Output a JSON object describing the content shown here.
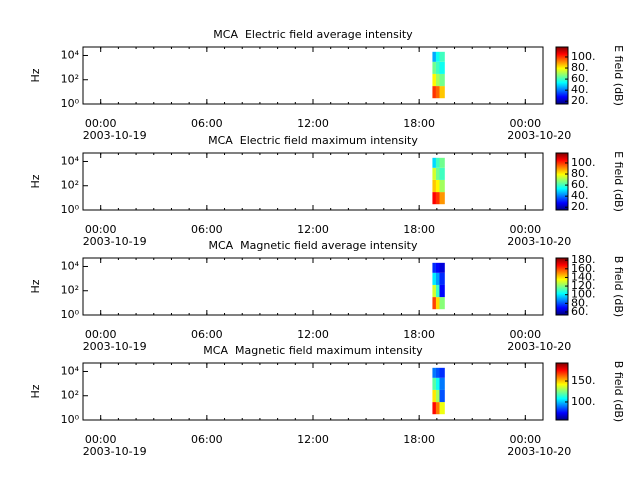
{
  "chart_data": [
    {
      "type": "spectrogram",
      "title": "MCA  Electric field average intensity",
      "ylabel": "Hz",
      "log_y": true,
      "ylim": [
        1,
        50000
      ],
      "yticks": [
        {
          "value": 1,
          "label": "10⁰"
        },
        {
          "value": 100,
          "label": "10²"
        },
        {
          "value": 10000,
          "label": "10⁴"
        }
      ],
      "xlim": [
        -1,
        25
      ],
      "xminor_step": 1,
      "xticks": [
        {
          "value": 0,
          "label": "00:00"
        },
        {
          "value": 6,
          "label": "06:00"
        },
        {
          "value": 12,
          "label": "12:00"
        },
        {
          "value": 18,
          "label": "18:00"
        },
        {
          "value": 24,
          "label": "00:00"
        }
      ],
      "xdates": [
        {
          "value": 0,
          "label": "2003-10-19"
        },
        {
          "value": 24,
          "label": "2003-10-20"
        }
      ],
      "time_edges": [
        18.75,
        18.95,
        19.15,
        19.45
      ],
      "freq_edges": [
        3,
        30,
        300,
        3000,
        20000
      ],
      "z": [
        [
          100,
          95,
          85
        ],
        [
          80,
          70,
          65
        ],
        [
          65,
          60,
          55
        ],
        [
          45,
          55,
          60
        ]
      ],
      "colorbar": {
        "label": "E field (dB)",
        "colormap": "jet",
        "clim": [
          15,
          118
        ],
        "ticks": [
          {
            "value": 20,
            "label": "20."
          },
          {
            "value": 40,
            "label": "40."
          },
          {
            "value": 60,
            "label": "60."
          },
          {
            "value": 80,
            "label": "80."
          },
          {
            "value": 100,
            "label": "100."
          }
        ]
      }
    },
    {
      "type": "spectrogram",
      "title": "MCA  Electric field maximum intensity",
      "ylabel": "Hz",
      "log_y": true,
      "ylim": [
        1,
        50000
      ],
      "yticks": [
        {
          "value": 1,
          "label": "10⁰"
        },
        {
          "value": 100,
          "label": "10²"
        },
        {
          "value": 10000,
          "label": "10⁴"
        }
      ],
      "xlim": [
        -1,
        25
      ],
      "xminor_step": 1,
      "xticks": [
        {
          "value": 0,
          "label": "00:00"
        },
        {
          "value": 6,
          "label": "06:00"
        },
        {
          "value": 12,
          "label": "12:00"
        },
        {
          "value": 18,
          "label": "18:00"
        },
        {
          "value": 24,
          "label": "00:00"
        }
      ],
      "xdates": [
        {
          "value": 0,
          "label": "2003-10-19"
        },
        {
          "value": 24,
          "label": "2003-10-20"
        }
      ],
      "time_edges": [
        18.75,
        18.95,
        19.15,
        19.45
      ],
      "freq_edges": [
        3,
        30,
        300,
        3000,
        20000
      ],
      "z": [
        [
          105,
          100,
          90
        ],
        [
          85,
          80,
          70
        ],
        [
          75,
          65,
          60
        ],
        [
          50,
          60,
          65
        ]
      ],
      "colorbar": {
        "label": "E field (dB)",
        "colormap": "jet",
        "clim": [
          15,
          118
        ],
        "ticks": [
          {
            "value": 20,
            "label": "20."
          },
          {
            "value": 40,
            "label": "40."
          },
          {
            "value": 60,
            "label": "60."
          },
          {
            "value": 80,
            "label": "80."
          },
          {
            "value": 100,
            "label": "100."
          }
        ]
      }
    },
    {
      "type": "spectrogram",
      "title": "MCA  Magnetic field average intensity",
      "ylabel": "Hz",
      "log_y": true,
      "ylim": [
        1,
        50000
      ],
      "yticks": [
        {
          "value": 1,
          "label": "10⁰"
        },
        {
          "value": 100,
          "label": "10²"
        },
        {
          "value": 10000,
          "label": "10⁴"
        }
      ],
      "xlim": [
        -1,
        25
      ],
      "xminor_step": 1,
      "xticks": [
        {
          "value": 0,
          "label": "00:00"
        },
        {
          "value": 6,
          "label": "06:00"
        },
        {
          "value": 12,
          "label": "12:00"
        },
        {
          "value": 18,
          "label": "18:00"
        },
        {
          "value": 24,
          "label": "00:00"
        }
      ],
      "xdates": [
        {
          "value": 0,
          "label": "2003-10-19"
        },
        {
          "value": 24,
          "label": "2003-10-20"
        }
      ],
      "time_edges": [
        18.75,
        18.95,
        19.15,
        19.45
      ],
      "freq_edges": [
        3,
        30,
        300,
        3000,
        20000
      ],
      "z": [
        [
          160,
          140,
          120
        ],
        [
          130,
          110,
          70
        ],
        [
          100,
          90,
          75
        ],
        [
          75,
          70,
          65
        ]
      ],
      "colorbar": {
        "label": "B field (dB)",
        "colormap": "jet",
        "clim": [
          53,
          185
        ],
        "ticks": [
          {
            "value": 60,
            "label": "60."
          },
          {
            "value": 80,
            "label": "80."
          },
          {
            "value": 100,
            "label": "100."
          },
          {
            "value": 120,
            "label": "120."
          },
          {
            "value": 140,
            "label": "140."
          },
          {
            "value": 160,
            "label": "160."
          },
          {
            "value": 180,
            "label": "180."
          }
        ]
      }
    },
    {
      "type": "spectrogram",
      "title": "MCA  Magnetic field maximum intensity",
      "ylabel": "Hz",
      "log_y": true,
      "ylim": [
        1,
        50000
      ],
      "yticks": [
        {
          "value": 1,
          "label": "10⁰"
        },
        {
          "value": 100,
          "label": "10²"
        },
        {
          "value": 10000,
          "label": "10⁴"
        }
      ],
      "xlim": [
        -1,
        25
      ],
      "xminor_step": 1,
      "xticks": [
        {
          "value": 0,
          "label": "00:00"
        },
        {
          "value": 6,
          "label": "06:00"
        },
        {
          "value": 12,
          "label": "12:00"
        },
        {
          "value": 18,
          "label": "18:00"
        },
        {
          "value": 24,
          "label": "00:00"
        }
      ],
      "xdates": [
        {
          "value": 0,
          "label": "2003-10-19"
        },
        {
          "value": 24,
          "label": "2003-10-20"
        }
      ],
      "time_edges": [
        18.75,
        18.95,
        19.15,
        19.45
      ],
      "freq_edges": [
        3,
        30,
        300,
        3000,
        20000
      ],
      "z": [
        [
          175,
          160,
          140
        ],
        [
          145,
          130,
          85
        ],
        [
          120,
          110,
          90
        ],
        [
          90,
          85,
          80
        ]
      ],
      "colorbar": {
        "label": "B field (dB)",
        "colormap": "jet",
        "clim": [
          57,
          193
        ],
        "ticks": [
          {
            "value": 100,
            "label": "100."
          },
          {
            "value": 150,
            "label": "150."
          }
        ]
      }
    }
  ]
}
